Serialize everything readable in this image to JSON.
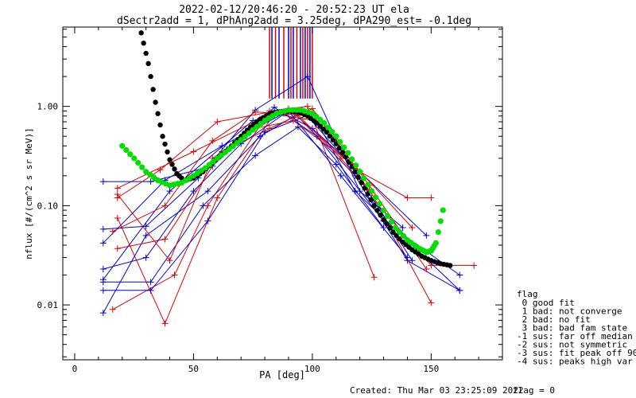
{
  "chart_data": {
    "type": "scatter",
    "title": "2022-02-12/20:46:20 - 20:52:23 UT ela",
    "subtitle": "dSectr2add = 1, dPhAng2add = 3.25deg, dPA290_est=  -0.1deg",
    "xlabel": "PA [deg]",
    "ylabel": "nflux [#/(cm^2 s sr MeV)]",
    "xlim": [
      -5,
      180
    ],
    "ylim": [
      0.0028,
      6.3
    ],
    "y_scale": "log",
    "grid": false,
    "x_ticks": [
      {
        "value": 0,
        "label": "0"
      },
      {
        "value": 50,
        "label": "50"
      },
      {
        "value": 100,
        "label": "100"
      },
      {
        "value": 150,
        "label": "150"
      }
    ],
    "y_ticks": [
      {
        "value": 0.01,
        "label": "0.01"
      },
      {
        "value": 0.1,
        "label": "0.10"
      },
      {
        "value": 1.0,
        "label": "1.00"
      }
    ],
    "series": [
      {
        "color": "#000000",
        "marker": "dot",
        "x": [
          28,
          31,
          34,
          37,
          40,
          43,
          46,
          50,
          54,
          58,
          62,
          66,
          70,
          74,
          78,
          82,
          86,
          90,
          94,
          98,
          102,
          106,
          110,
          114,
          118,
          122,
          126,
          130,
          134,
          138,
          142,
          146,
          150,
          154,
          158
        ],
        "y": [
          5.5,
          2.7,
          1.1,
          0.5,
          0.29,
          0.21,
          0.18,
          0.19,
          0.22,
          0.27,
          0.33,
          0.4,
          0.5,
          0.62,
          0.74,
          0.84,
          0.88,
          0.9,
          0.88,
          0.8,
          0.68,
          0.55,
          0.42,
          0.31,
          0.22,
          0.15,
          0.1,
          0.072,
          0.054,
          0.043,
          0.036,
          0.031,
          0.028,
          0.026,
          0.025
        ]
      },
      {
        "color": "#00e000",
        "marker": "dot",
        "x": [
          20,
          25,
          30,
          35,
          40,
          45,
          50,
          55,
          60,
          65,
          70,
          75,
          80,
          85,
          90,
          95,
          100,
          105,
          110,
          115,
          120,
          125,
          130,
          135,
          140,
          145,
          148,
          150,
          152,
          155
        ],
        "y": [
          0.4,
          0.3,
          0.22,
          0.18,
          0.16,
          0.17,
          0.2,
          0.24,
          0.3,
          0.37,
          0.46,
          0.58,
          0.72,
          0.85,
          0.92,
          0.92,
          0.85,
          0.68,
          0.5,
          0.34,
          0.22,
          0.14,
          0.09,
          0.06,
          0.045,
          0.037,
          0.034,
          0.035,
          0.042,
          0.09
        ]
      }
    ],
    "fit_lines": [
      {
        "color": "#0000e0",
        "points": [
          [
            12,
            0.018
          ],
          [
            40,
            0.14
          ],
          [
            75,
            0.72
          ],
          [
            92,
            0.88
          ],
          [
            118,
            0.2
          ],
          [
            140,
            0.028
          ],
          [
            162,
            0.014
          ]
        ]
      },
      {
        "color": "#e00000",
        "points": [
          [
            18,
            0.15
          ],
          [
            50,
            0.35
          ],
          [
            78,
            0.75
          ],
          [
            95,
            0.9
          ],
          [
            110,
            0.5
          ],
          [
            125,
            0.12
          ],
          [
            150,
            0.025
          ],
          [
            168,
            0.025
          ]
        ]
      },
      {
        "color": "#0000e0",
        "points": [
          [
            12,
            0.042
          ],
          [
            38,
            0.18
          ],
          [
            62,
            0.4
          ],
          [
            88,
            0.85
          ],
          [
            100,
            0.6
          ],
          [
            120,
            0.22
          ],
          [
            148,
            0.05
          ]
        ]
      },
      {
        "color": "#e00000",
        "points": [
          [
            16,
            0.009
          ],
          [
            42,
            0.02
          ],
          [
            56,
            0.1
          ],
          [
            82,
            0.9
          ],
          [
            98,
            1.0
          ],
          [
            126,
            0.019
          ]
        ]
      },
      {
        "color": "#0000e0",
        "points": [
          [
            12,
            0.175
          ],
          [
            32,
            0.175
          ],
          [
            58,
            0.25
          ],
          [
            84,
            0.98
          ],
          [
            102,
            0.5
          ],
          [
            130,
            0.07
          ],
          [
            162,
            0.02
          ]
        ]
      },
      {
        "color": "#e00000",
        "points": [
          [
            18,
            0.075
          ],
          [
            38,
            0.0065
          ],
          [
            60,
            0.12
          ],
          [
            84,
            0.84
          ],
          [
            104,
            0.7
          ],
          [
            126,
            0.12
          ],
          [
            150,
            0.0105
          ]
        ]
      },
      {
        "color": "#0000e0",
        "points": [
          [
            12,
            0.0083
          ],
          [
            30,
            0.05
          ],
          [
            56,
            0.14
          ],
          [
            78,
            0.5
          ],
          [
            96,
            0.9
          ],
          [
            116,
            0.26
          ],
          [
            142,
            0.028
          ]
        ]
      },
      {
        "color": "#e00000",
        "points": [
          [
            18,
            0.12
          ],
          [
            36,
            0.23
          ],
          [
            60,
            0.7
          ],
          [
            90,
            0.95
          ],
          [
            120,
            0.22
          ],
          [
            140,
            0.12
          ],
          [
            150,
            0.12
          ]
        ]
      },
      {
        "color": "#0000e0",
        "points": [
          [
            12,
            0.058
          ],
          [
            30,
            0.062
          ],
          [
            52,
            0.19
          ],
          [
            76,
            0.92
          ],
          [
            98,
            2.0
          ],
          [
            120,
            0.14
          ],
          [
            138,
            0.06
          ]
        ]
      },
      {
        "color": "#e00000",
        "points": [
          [
            18,
            0.037
          ],
          [
            38,
            0.046
          ],
          [
            62,
            0.35
          ],
          [
            82,
            0.6
          ],
          [
            100,
            0.95
          ],
          [
            124,
            0.16
          ],
          [
            148,
            0.023
          ]
        ]
      },
      {
        "color": "#0000e0",
        "points": [
          [
            12,
            0.014
          ],
          [
            32,
            0.014
          ],
          [
            56,
            0.07
          ],
          [
            80,
            0.55
          ],
          [
            100,
            0.85
          ],
          [
            118,
            0.14
          ],
          [
            162,
            0.014
          ]
        ]
      },
      {
        "color": "#e00000",
        "points": [
          [
            16,
            0.055
          ],
          [
            38,
            0.1
          ],
          [
            58,
            0.45
          ],
          [
            76,
            0.88
          ],
          [
            94,
            0.82
          ],
          [
            112,
            0.3
          ],
          [
            124,
            0.14
          ]
        ]
      },
      {
        "color": "#0000e0",
        "points": [
          [
            12,
            0.023
          ],
          [
            30,
            0.03
          ],
          [
            50,
            0.14
          ],
          [
            70,
            0.42
          ],
          [
            90,
            0.9
          ],
          [
            112,
            0.2
          ],
          [
            140,
            0.03
          ]
        ]
      },
      {
        "color": "#0000e0",
        "points": [
          [
            12,
            0.017
          ],
          [
            32,
            0.017
          ],
          [
            54,
            0.1
          ],
          [
            76,
            0.32
          ],
          [
            94,
            0.62
          ],
          [
            110,
            0.26
          ],
          [
            130,
            0.06
          ]
        ]
      },
      {
        "color": "#e00000",
        "points": [
          [
            18,
            0.13
          ],
          [
            40,
            0.028
          ],
          [
            58,
            0.3
          ],
          [
            76,
            0.6
          ],
          [
            92,
            0.72
          ],
          [
            118,
            0.25
          ],
          [
            142,
            0.06
          ]
        ]
      }
    ],
    "vertical_markers": [
      {
        "x": 82,
        "color": "#e00000"
      },
      {
        "x": 83,
        "color": "#0000e0"
      },
      {
        "x": 84.5,
        "color": "#e00000"
      },
      {
        "x": 86,
        "color": "#0000e0"
      },
      {
        "x": 88,
        "color": "#e00000"
      },
      {
        "x": 90,
        "color": "#0000e0"
      },
      {
        "x": 91,
        "color": "#e00000"
      },
      {
        "x": 92,
        "color": "#0000e0"
      },
      {
        "x": 93.5,
        "color": "#e00000"
      },
      {
        "x": 95,
        "color": "#0000e0"
      },
      {
        "x": 96,
        "color": "#e00000"
      },
      {
        "x": 97,
        "color": "#0000e0"
      },
      {
        "x": 98,
        "color": "#e00000"
      },
      {
        "x": 99,
        "color": "#0000e0"
      },
      {
        "x": 100,
        "color": "#e00000"
      }
    ],
    "legend": {
      "placement": "bottom-right",
      "title": "flag",
      "entries": [
        " 0 good fit",
        " 1 bad: not converge",
        " 2 bad: no fit",
        " 3 bad: bad fam state",
        "-1 sus: far off median",
        "-2 sus: not symmetric",
        "-3 sus: fit peak off 90",
        "-4 sus: peaks high var"
      ]
    },
    "footer": {
      "created": "Created: Thu Mar 03 23:25:09 2022",
      "flag": "flag = 0"
    }
  }
}
